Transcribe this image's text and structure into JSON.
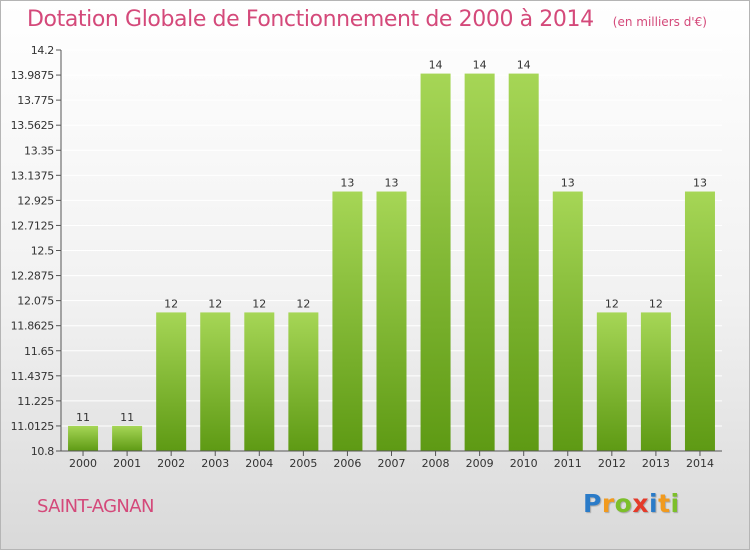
{
  "header": {
    "title": "Dotation Globale de Fonctionnement de 2000 à 2014",
    "subtitle": "(en milliers d'€)"
  },
  "footer": {
    "commune": "SAINT-AGNAN",
    "logo_letters": [
      "P",
      "r",
      "o",
      "x",
      "i",
      "t",
      "i"
    ],
    "logo_colors": [
      "#2a7bc8",
      "#f19a1e",
      "#7cbf2a",
      "#e43a2a",
      "#2a7bc8",
      "#f19a1e",
      "#7cbf2a"
    ]
  },
  "colors": {
    "bar_top": "#a6d656",
    "bar_bottom": "#5e9a14",
    "grid": "#ffffff",
    "axis": "#555555",
    "text": "#333333",
    "accent": "#d4497a"
  },
  "chart_data": {
    "type": "bar",
    "categories": [
      "2000",
      "2001",
      "2002",
      "2003",
      "2004",
      "2005",
      "2006",
      "2007",
      "2008",
      "2009",
      "2010",
      "2011",
      "2012",
      "2013",
      "2014"
    ],
    "values": [
      11,
      11,
      12,
      12,
      12,
      12,
      13,
      13,
      14,
      14,
      14,
      13,
      12,
      12,
      13
    ],
    "value_labels": [
      "11",
      "11",
      "12",
      "12",
      "12",
      "12",
      "13",
      "13",
      "14",
      "14",
      "14",
      "13",
      "12",
      "12",
      "13"
    ],
    "value_positions": [
      11.0125,
      11.0125,
      11.975,
      11.975,
      11.975,
      11.975,
      13.0,
      13.0,
      14.0,
      14.0,
      14.0,
      13.0,
      11.975,
      11.975,
      13.0
    ],
    "yticks": [
      "10.8",
      "11.0125",
      "11.225",
      "11.4375",
      "11.65",
      "11.8625",
      "12.075",
      "12.2875",
      "12.5",
      "12.7125",
      "12.925",
      "13.1375",
      "13.35",
      "13.5625",
      "13.775",
      "13.9875",
      "14.2"
    ],
    "ylim": [
      10.8,
      14.2
    ],
    "grid": true,
    "title": "Dotation Globale de Fonctionnement de 2000 à 2014",
    "xlabel": "",
    "ylabel": ""
  }
}
